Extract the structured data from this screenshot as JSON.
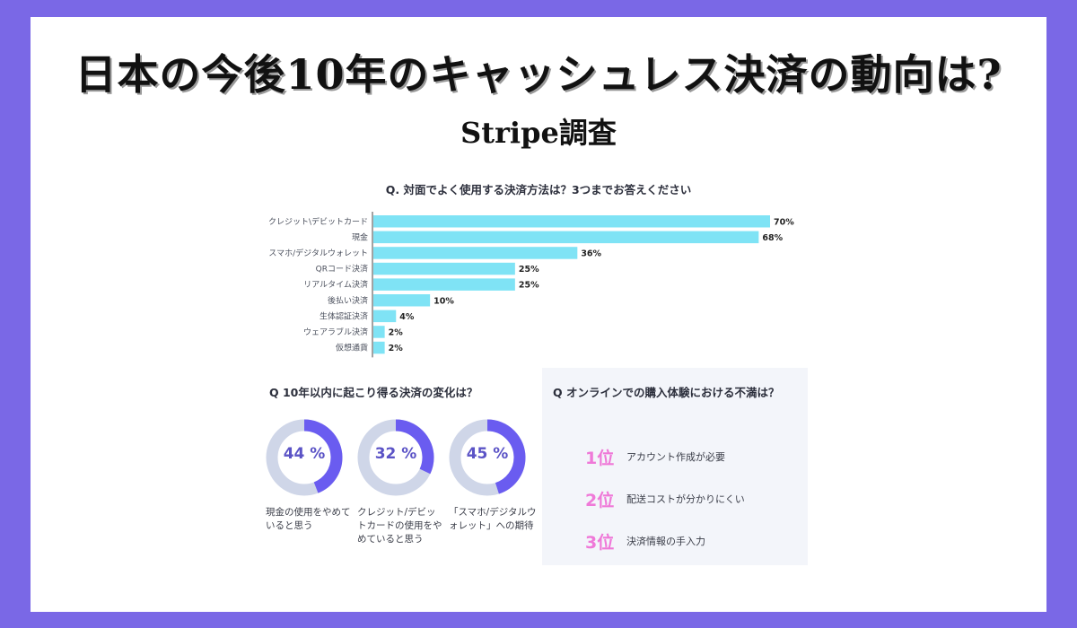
{
  "header": {
    "title": "日本の今後10年のキャッシュレス決済の動向は?",
    "subtitle": "Stripe調査"
  },
  "chart_data": [
    {
      "type": "bar",
      "orientation": "horizontal",
      "title": "Q. 対面でよく使用する決済方法は？3つまでお答えください",
      "categories": [
        "クレジット\\デビットカード",
        "現金",
        "スマホ/デジタルウォレット",
        "QRコード決済",
        "リアルタイム決済",
        "後払い決済",
        "生体認証決済",
        "ウェアラブル決済",
        "仮想通貨"
      ],
      "values": [
        70,
        68,
        36,
        25,
        25,
        10,
        4,
        2,
        2
      ],
      "value_labels": [
        "70%",
        "68%",
        "36%",
        "25%",
        "25%",
        "10%",
        "4%",
        "2%",
        "2%"
      ],
      "unit": "%",
      "xlim": [
        0,
        70
      ],
      "bar_color": "#7fe3f5",
      "grid": false
    },
    {
      "type": "pie",
      "variant": "donut",
      "title": "Q 10年以内に起こり得る決済の変化は？",
      "items": [
        {
          "value": 44,
          "label": "44 %",
          "caption": "現金の使用をやめていると思う"
        },
        {
          "value": 32,
          "label": "32 %",
          "caption": "クレジット/デビットカードの使用をやめていると思う"
        },
        {
          "value": 45,
          "label": "45 %",
          "caption": "「スマホ/デジタルウォレット」への期待"
        }
      ],
      "fill_color": "#6a5cf0",
      "track_color": "#cfd6e8"
    }
  ],
  "ranking": {
    "title": "Q オンラインでの購入体験における不満は？",
    "items": [
      {
        "rank": "1位",
        "text": "アカウント作成が必要"
      },
      {
        "rank": "2位",
        "text": "配送コストが分かりにくい"
      },
      {
        "rank": "3位",
        "text": "決済情報の手入力"
      }
    ],
    "rank_color": "#ef79d8"
  }
}
